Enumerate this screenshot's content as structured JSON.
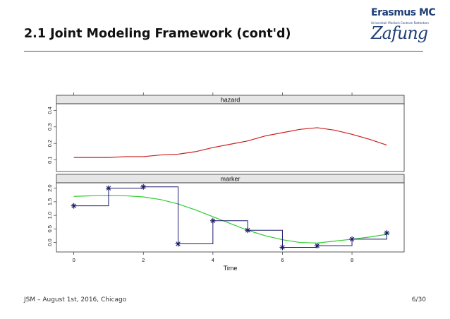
{
  "slide": {
    "title": "2.1 Joint Modeling Framework (cont'd)",
    "footer_left": "JSM – August 1st, 2016, Chicago",
    "footer_right": "6/30"
  },
  "logo": {
    "main": "Erasmus MC",
    "sub": "Universitair Medisch Centrum Rotterdam",
    "script": "Zafung"
  },
  "colors": {
    "hazard_line": "#cc1f1f",
    "marker_fit": "#2ecc2e",
    "marker_obs": "#1a1a6b",
    "strip_bg": "#e6e6e6"
  },
  "chart_data": [
    {
      "type": "line",
      "panel": "hazard",
      "strip_label": "hazard",
      "xlim": [
        -0.5,
        9.5
      ],
      "ylim": [
        0.03,
        0.44
      ],
      "yticks": [
        0.1,
        0.2,
        0.3,
        0.4
      ],
      "ytick_labels": [
        "0.1",
        "0.2",
        "0.3",
        "0.4"
      ],
      "series": [
        {
          "x": [
            0,
            0.5,
            1,
            1.5,
            2,
            2.5,
            3,
            3.5,
            4,
            4.5,
            5,
            5.5,
            6,
            6.5,
            7,
            7.5,
            8,
            8.5,
            9
          ],
          "y": [
            0.115,
            0.115,
            0.115,
            0.12,
            0.12,
            0.13,
            0.135,
            0.15,
            0.175,
            0.195,
            0.215,
            0.245,
            0.265,
            0.285,
            0.295,
            0.28,
            0.255,
            0.225,
            0.19
          ]
        }
      ]
    },
    {
      "type": "line",
      "panel": "marker",
      "strip_label": "marker",
      "xlabel": "Time",
      "xlim": [
        -0.5,
        9.5
      ],
      "ylim": [
        -0.35,
        2.2
      ],
      "xticks": [
        0,
        2,
        4,
        6,
        8
      ],
      "xtick_labels": [
        "0",
        "2",
        "4",
        "6",
        "8"
      ],
      "yticks": [
        0.0,
        0.5,
        1.0,
        1.5,
        2.0
      ],
      "ytick_labels": [
        "0.0",
        "0.5",
        "1.0",
        "1.5",
        "2.0"
      ],
      "series": [
        {
          "kind": "fitted",
          "x": [
            0,
            0.5,
            1,
            1.5,
            2,
            2.5,
            3,
            3.5,
            4,
            4.5,
            5,
            5.5,
            6,
            6.5,
            7,
            7.5,
            8,
            8.5,
            9
          ],
          "y": [
            1.7,
            1.72,
            1.73,
            1.72,
            1.68,
            1.58,
            1.42,
            1.2,
            0.95,
            0.7,
            0.45,
            0.25,
            0.1,
            0.0,
            -0.02,
            0.05,
            0.12,
            0.2,
            0.3
          ]
        },
        {
          "kind": "observed",
          "x": [
            0,
            1,
            2,
            3,
            4,
            5,
            6,
            7,
            8,
            9
          ],
          "y": [
            1.35,
            2.0,
            2.05,
            -0.05,
            0.8,
            0.45,
            -0.18,
            -0.12,
            0.12,
            0.35
          ]
        }
      ]
    }
  ]
}
